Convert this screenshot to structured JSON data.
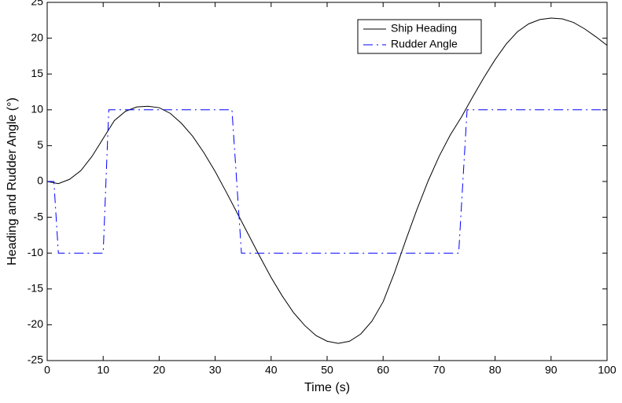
{
  "chart_data": {
    "type": "line",
    "xlabel": "Time (s)",
    "ylabel": "Heading and Rudder Angle (°)",
    "xlim": [
      0,
      100
    ],
    "xticks": [
      0,
      10,
      20,
      30,
      40,
      50,
      60,
      70,
      80,
      90,
      100
    ],
    "ylim": [
      -25,
      25
    ],
    "yticks": [
      -25,
      -20,
      -15,
      -10,
      -5,
      0,
      5,
      10,
      15,
      20,
      25
    ],
    "grid": false,
    "legend": "upper right",
    "series": [
      {
        "name": "Ship Heading",
        "color": "#000000",
        "linestyle": "solid",
        "x": [
          0,
          2,
          4,
          6,
          8,
          10,
          12,
          14,
          16,
          18,
          20,
          22,
          24,
          26,
          28,
          30,
          32,
          34,
          36,
          38,
          40,
          42,
          44,
          46,
          48,
          50,
          52,
          54,
          56,
          58,
          60,
          62,
          64,
          66,
          68,
          70,
          72,
          74,
          76,
          78,
          80,
          82,
          84,
          86,
          88,
          90,
          92,
          94,
          96,
          98,
          100
        ],
        "values": [
          0,
          -0.3,
          0.3,
          1.5,
          3.5,
          6,
          8.5,
          9.8,
          10.4,
          10.5,
          10.3,
          9.5,
          8.1,
          6.3,
          4,
          1.4,
          -1.5,
          -4.5,
          -7.5,
          -10.5,
          -13.4,
          -16,
          -18.3,
          -20.1,
          -21.5,
          -22.3,
          -22.6,
          -22.3,
          -21.3,
          -19.5,
          -16.8,
          -12.8,
          -8.3,
          -4,
          0,
          3.5,
          6.5,
          9,
          11.8,
          14.5,
          17,
          19.2,
          20.9,
          22,
          22.6,
          22.8,
          22.7,
          22.2,
          21.3,
          20.2,
          19
        ]
      },
      {
        "name": "Rudder Angle",
        "color": "#0000ff",
        "linestyle": "dashdot",
        "x": [
          0,
          1.2,
          2,
          10,
          11,
          33,
          34.7,
          73.5,
          75,
          100
        ],
        "values": [
          0,
          0,
          -10,
          -10,
          10,
          10,
          -10,
          -10,
          10,
          10
        ]
      }
    ]
  }
}
